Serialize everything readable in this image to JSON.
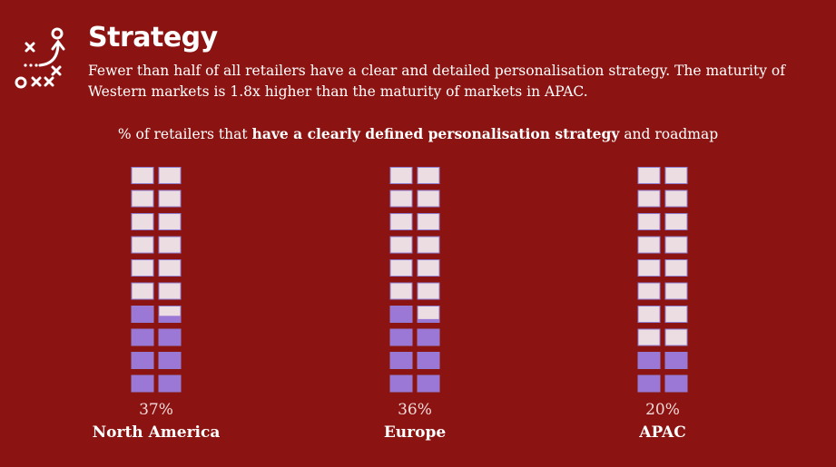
{
  "header": {
    "title": "Strategy",
    "description": "Fewer than half of all retailers have a clear and detailed personalisation strategy. The maturity of Western markets is 1.8x higher than the maturity of markets in APAC.",
    "icon": "strategy-playbook-icon"
  },
  "chart_data": {
    "type": "waffle",
    "title_parts": {
      "prefix": "% of retailers that ",
      "bold": "have a clearly defined personalisation strategy",
      "suffix": " and roadmap"
    },
    "categories": [
      "North America",
      "Europe",
      "APAC"
    ],
    "values": [
      37,
      36,
      20
    ],
    "value_labels": [
      "37%",
      "36%",
      "20%"
    ],
    "grid": {
      "columns": 2,
      "rows": 10,
      "total_cells": 20,
      "fill_from": "bottom"
    }
  },
  "colors": {
    "background": "#8b1412",
    "filled": "#9b78d6",
    "empty": "#ecdde2",
    "cell_border": "#8f7fd0"
  }
}
